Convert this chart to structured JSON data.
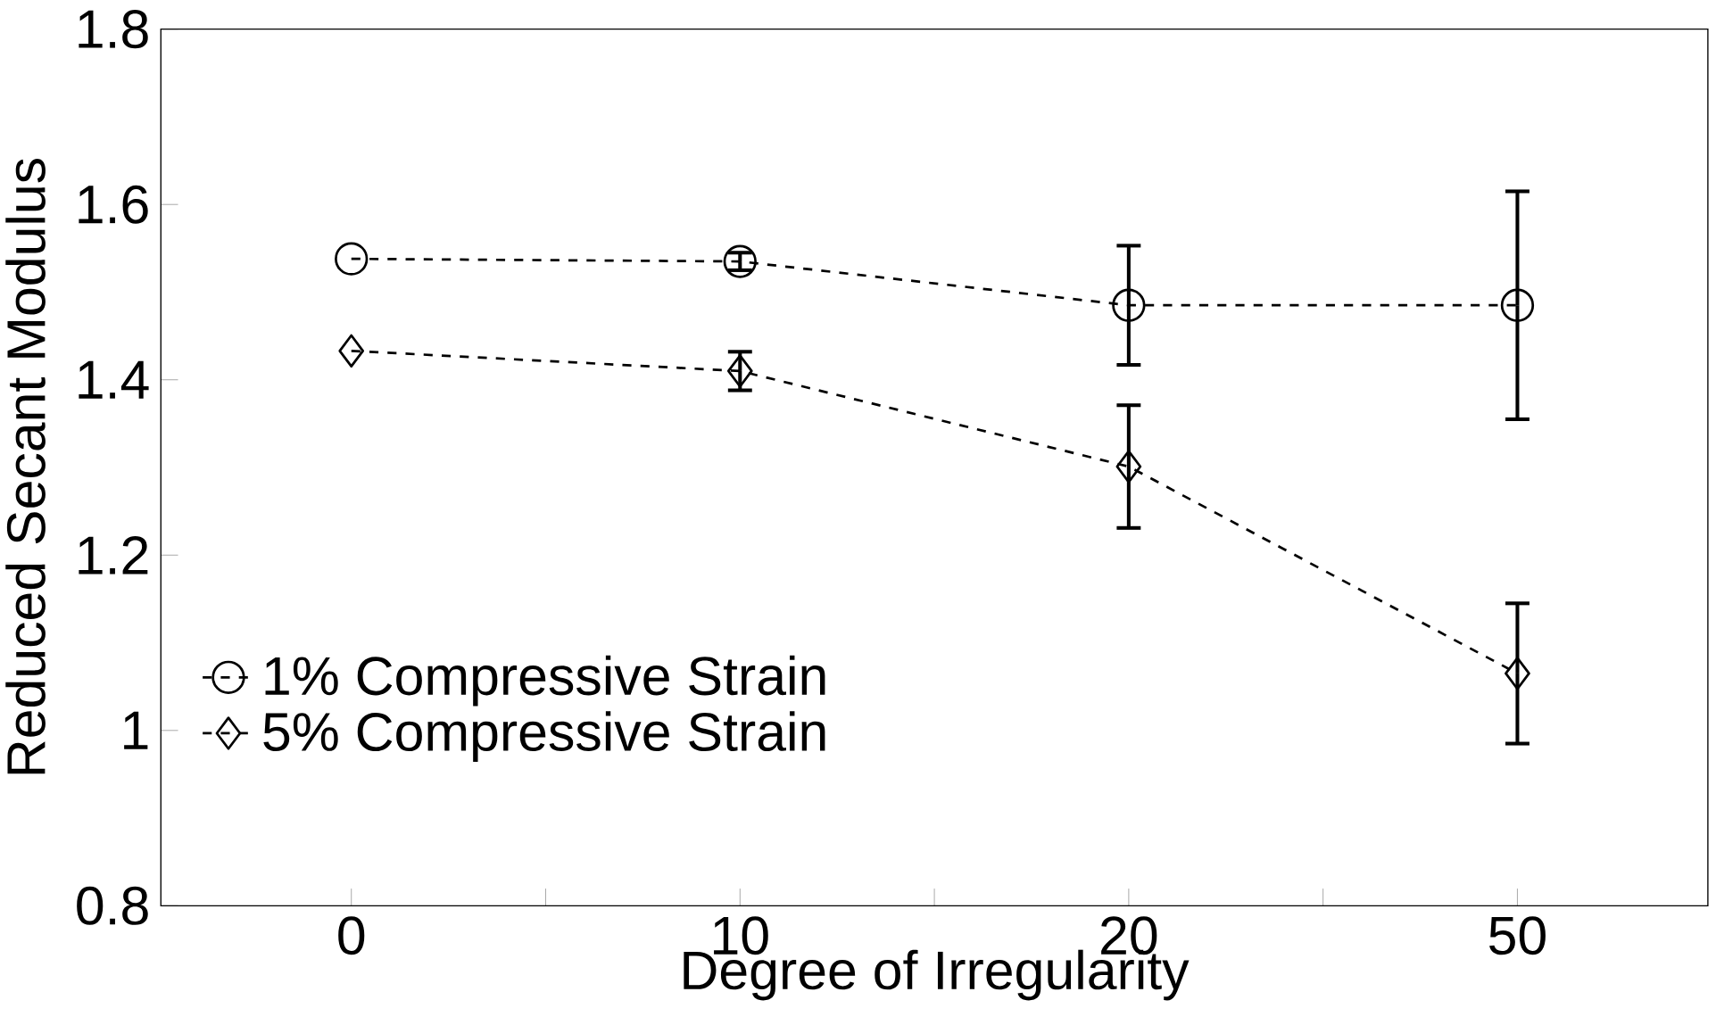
{
  "chart_data": {
    "type": "line",
    "xlabel": "Degree of Irregularity",
    "ylabel": "Reduced Secant Modulus",
    "categories": [
      "0",
      "10",
      "20",
      "50"
    ],
    "series": [
      {
        "name": "1% Compressive Strain",
        "color": "#000000",
        "marker": "circle",
        "values": [
          1.538,
          1.535,
          1.485,
          1.485
        ],
        "errors": [
          null,
          0.01,
          0.068,
          0.13
        ]
      },
      {
        "name": "5% Compressive Strain",
        "color": "#000000",
        "marker": "diamond",
        "values": [
          1.433,
          1.41,
          1.301,
          1.065
        ],
        "errors": [
          null,
          0.022,
          0.07,
          0.08
        ]
      }
    ],
    "ylim": [
      0.8,
      1.8
    ],
    "yticks": [
      0.8,
      1,
      1.2,
      1.4,
      1.6,
      1.8
    ],
    "line_style": "dashed",
    "grid": false,
    "legend": "bottom left"
  }
}
